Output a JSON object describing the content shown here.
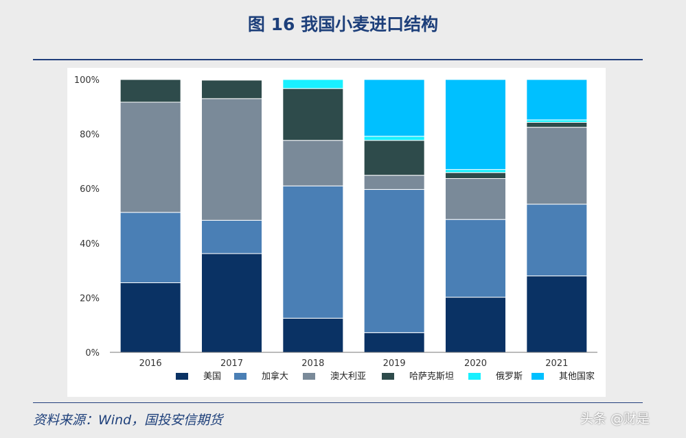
{
  "header": {
    "title": "图 16 我国小麦进口结构"
  },
  "footer": {
    "source": "资料来源：Wind，国投安信期货",
    "watermark": "头条 @财是"
  },
  "chart_data": {
    "type": "bar",
    "stacked": true,
    "categories": [
      "2016",
      "2017",
      "2018",
      "2019",
      "2020",
      "2021"
    ],
    "series": [
      {
        "name": "美国",
        "color": "#0a3264",
        "values": [
          25.5,
          36.2,
          12.5,
          7.2,
          20.2,
          28.0
        ]
      },
      {
        "name": "加拿大",
        "color": "#4a7fb5",
        "values": [
          25.8,
          12.2,
          48.5,
          52.5,
          28.5,
          26.3
        ]
      },
      {
        "name": "澳大利亚",
        "color": "#7a8a99",
        "values": [
          40.4,
          44.6,
          16.7,
          5.2,
          15.0,
          28.2
        ]
      },
      {
        "name": "哈萨克斯坦",
        "color": "#2e4b4b",
        "values": [
          8.3,
          6.8,
          19.0,
          12.8,
          2.2,
          1.8
        ]
      },
      {
        "name": "俄罗斯",
        "color": "#19f0ff",
        "values": [
          0.0,
          0.2,
          3.3,
          1.5,
          1.1,
          0.9
        ]
      },
      {
        "name": "其他国家",
        "color": "#00c0ff",
        "values": [
          0.0,
          0.0,
          0.0,
          20.8,
          33.0,
          14.8
        ]
      }
    ],
    "ylim": [
      0,
      100
    ],
    "yticks": [
      "0%",
      "20%",
      "40%",
      "60%",
      "80%",
      "100%"
    ],
    "legend": "bottom",
    "grid": false
  }
}
